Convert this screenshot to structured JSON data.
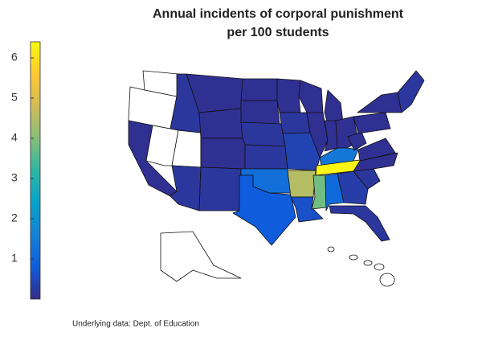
{
  "chart_data": {
    "type": "choropleth",
    "title": [
      "Annual incidents of corporal punishment",
      "per 100 students"
    ],
    "note": "Underlying data: Dept. of Education",
    "colormap": [
      "#352a87",
      "#0f5cdd",
      "#1481d6",
      "#06a4ca",
      "#2eb7a4",
      "#87bf77",
      "#d1bb59",
      "#fec832",
      "#f9fb0e"
    ],
    "missing_color": "#ffffff",
    "clim": [
      0,
      6.4
    ],
    "cticks": [
      1,
      2,
      3,
      4,
      5,
      6
    ],
    "values": [
      null,
      null,
      0.1,
      null,
      null,
      0.2,
      0.1,
      0.1,
      0.1,
      0.2,
      0.2,
      0.1,
      0.1,
      0.2,
      0.2,
      1.2,
      0.8,
      0.1,
      0.2,
      0.4,
      4.5,
      0.6,
      0.1,
      0.1,
      0.1,
      0.1,
      0.1,
      1.4,
      6.3,
      3.8,
      1.1,
      0.3,
      0.2,
      0.2,
      0.1,
      0.1,
      0.1,
      0.1,
      0.1,
      0.2,
      null
    ]
  }
}
